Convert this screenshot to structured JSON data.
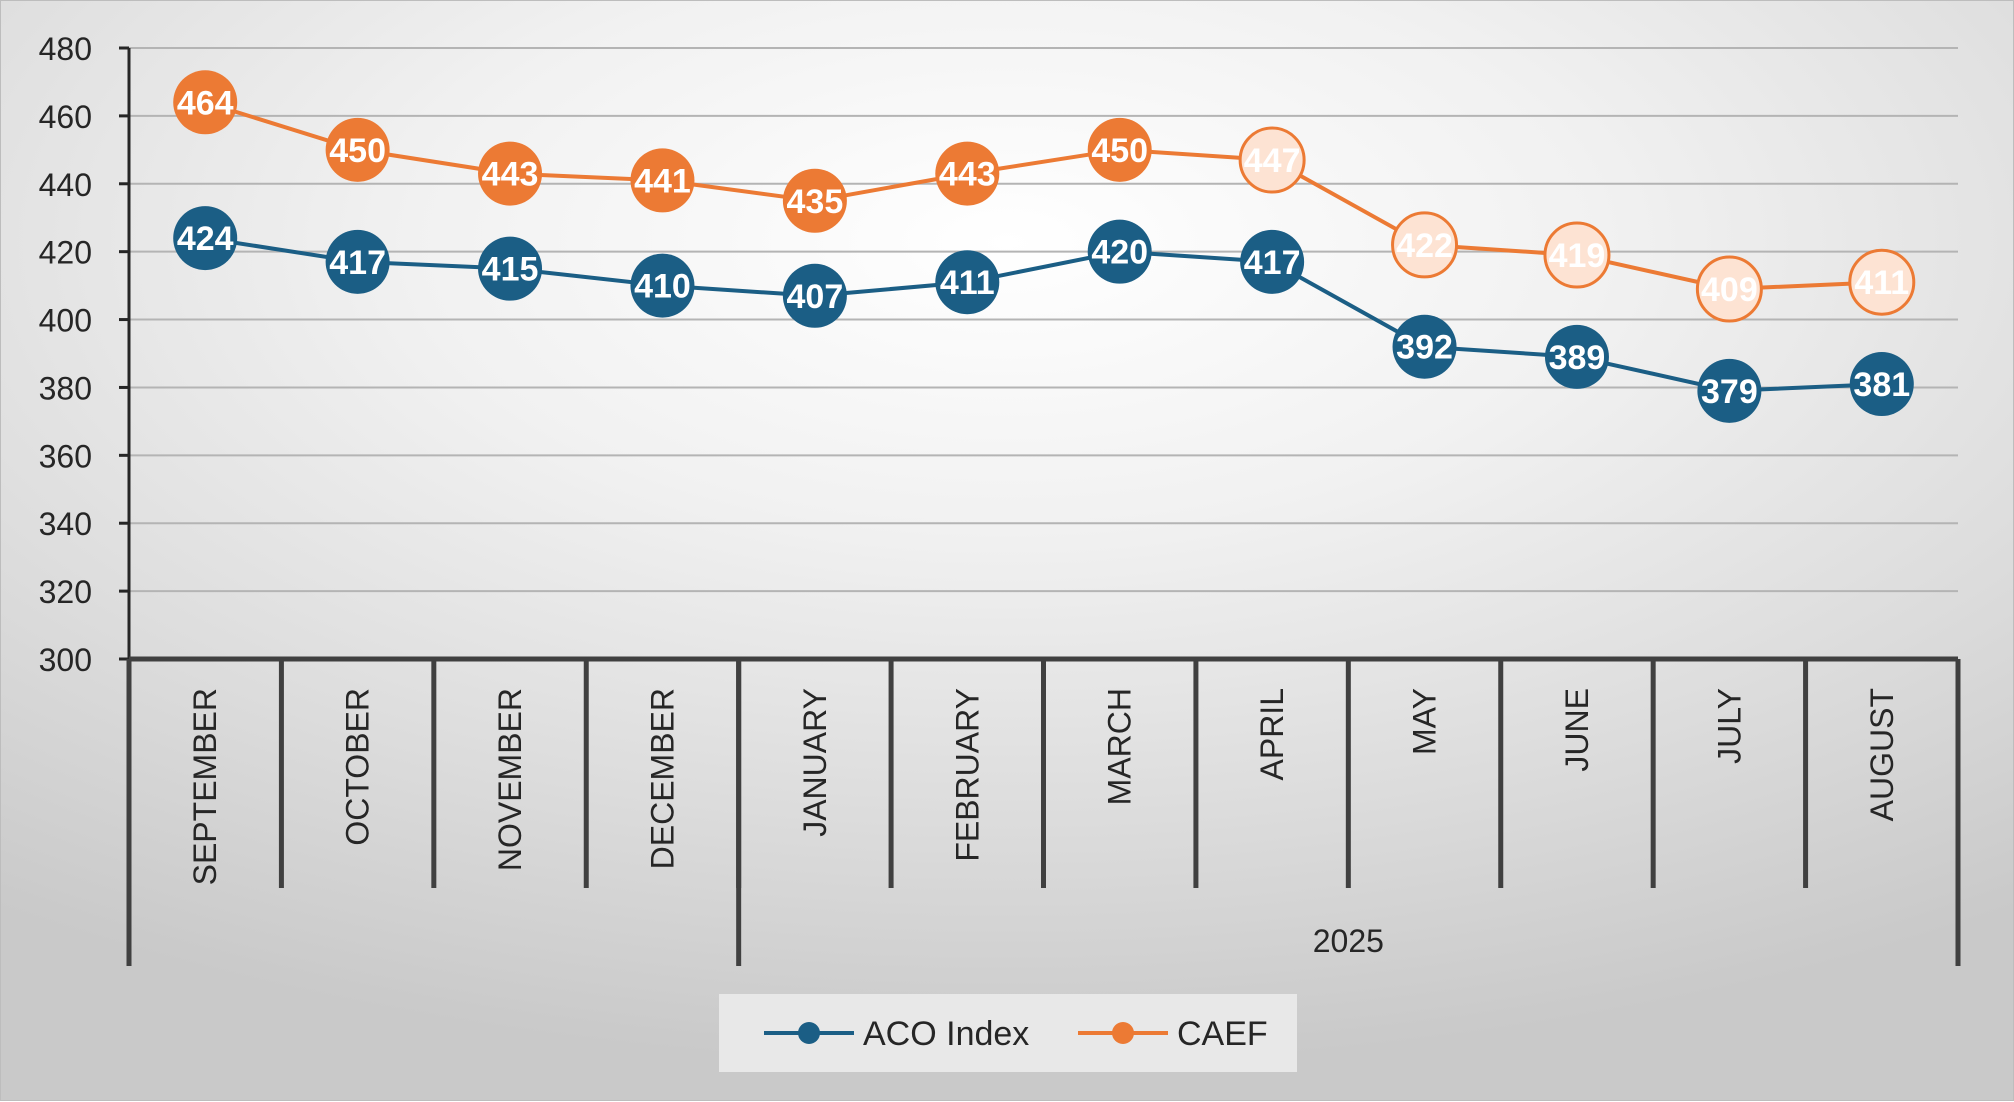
{
  "chart_data": {
    "type": "line",
    "categories": [
      "SEPTEMBER",
      "OCTOBER",
      "NOVEMBER",
      "DECEMBER",
      "JANUARY",
      "FEBRUARY",
      "MARCH",
      "APRIL",
      "MAY",
      "JUNE",
      "JULY",
      "AUGUST"
    ],
    "category_groups": [
      {
        "label": "",
        "span": 4
      },
      {
        "label": "2025",
        "span": 8
      }
    ],
    "series": [
      {
        "name": "ACO Index",
        "color": "#1b5e85",
        "values": [
          424,
          417,
          415,
          410,
          407,
          411,
          420,
          417,
          392,
          389,
          379,
          381
        ]
      },
      {
        "name": "CAEF",
        "color": "#ec7a34",
        "forecast_fill": "#fde3d3",
        "values": [
          464,
          450,
          443,
          441,
          435,
          443,
          450,
          447,
          422,
          419,
          409,
          411
        ],
        "forecast_from_index": 7
      }
    ],
    "y_ticks": [
      "480",
      "460",
      "440",
      "420",
      "400",
      "380",
      "360",
      "340",
      "320",
      "300"
    ],
    "ylim": [
      300,
      480
    ],
    "grid": true,
    "legend_position": "bottom"
  }
}
